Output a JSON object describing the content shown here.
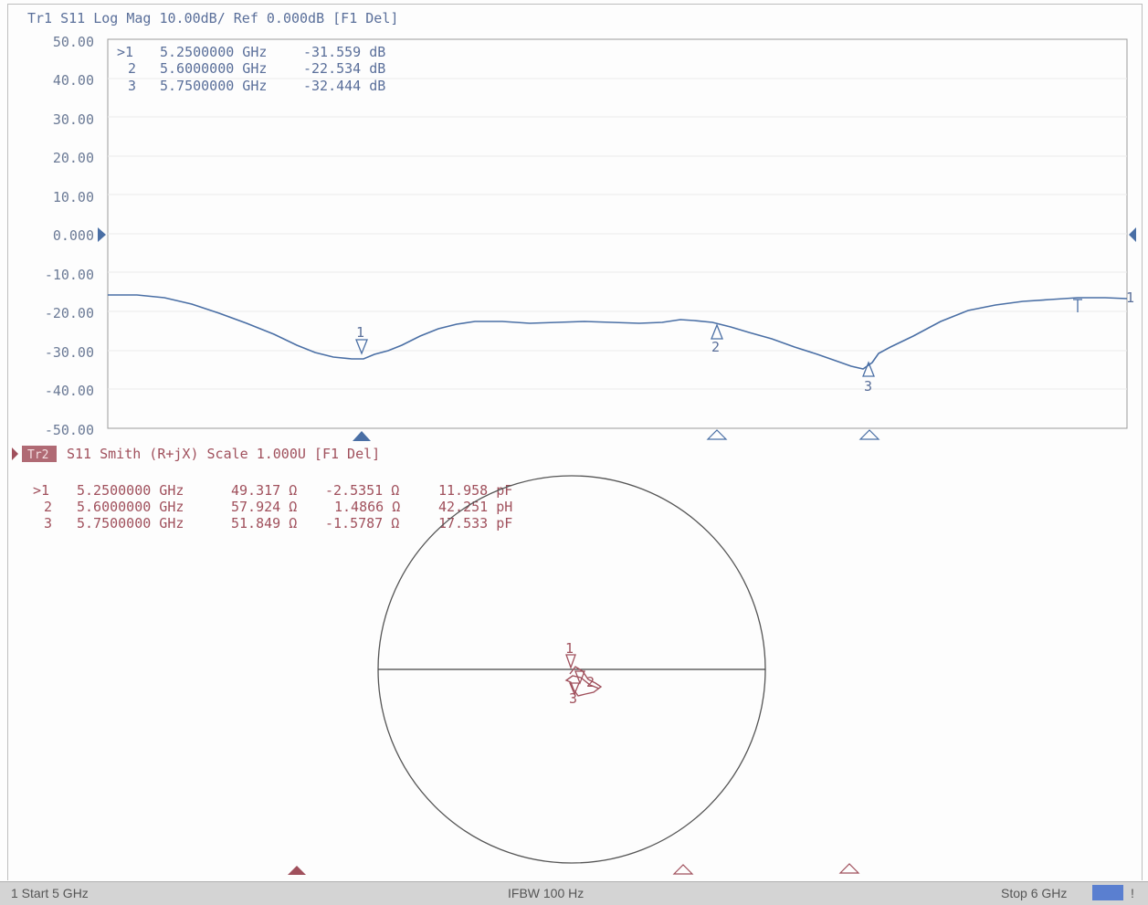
{
  "trace1": {
    "header": "Tr1 S11 Log Mag 10.00dB/ Ref 0.000dB [F1 Del]",
    "y_ticks": [
      "50.00",
      "40.00",
      "30.00",
      "20.00",
      "10.00",
      "0.000",
      "-10.00",
      "-20.00",
      "-30.00",
      "-40.00",
      "-50.00"
    ],
    "markers": [
      {
        "label": ">1",
        "freq": "5.2500000 GHz",
        "value": "-31.559 dB"
      },
      {
        "label": "2",
        "freq": "5.6000000 GHz",
        "value": "-22.534 dB"
      },
      {
        "label": "3",
        "freq": "5.7500000 GHz",
        "value": "-32.444 dB"
      }
    ],
    "marker_tags": [
      "1",
      "2",
      "3"
    ],
    "end_tag": "1",
    "color": "#4a6fa5"
  },
  "trace2": {
    "badge": "Tr2",
    "header": "S11 Smith (R+jX) Scale 1.000U [F1 Del]",
    "markers": [
      {
        "label": ">1",
        "freq": "5.2500000 GHz",
        "r": "49.317 Ω",
        "x": "-2.5351 Ω",
        "comp": "11.958 pF"
      },
      {
        "label": "2",
        "freq": "5.6000000 GHz",
        "r": "57.924 Ω",
        "x": "1.4866 Ω",
        "comp": "42.251 pH"
      },
      {
        "label": "3",
        "freq": "5.7500000 GHz",
        "r": "51.849 Ω",
        "x": "-1.5787 Ω",
        "comp": "17.533 pF"
      }
    ],
    "smith_tags": [
      "1",
      "2",
      "3"
    ],
    "color": "#a0505c"
  },
  "status": {
    "start": "1 Start 5 GHz",
    "ifbw": "IFBW 100 Hz",
    "stop": "Stop 6 GHz",
    "end_mark": "!"
  }
}
